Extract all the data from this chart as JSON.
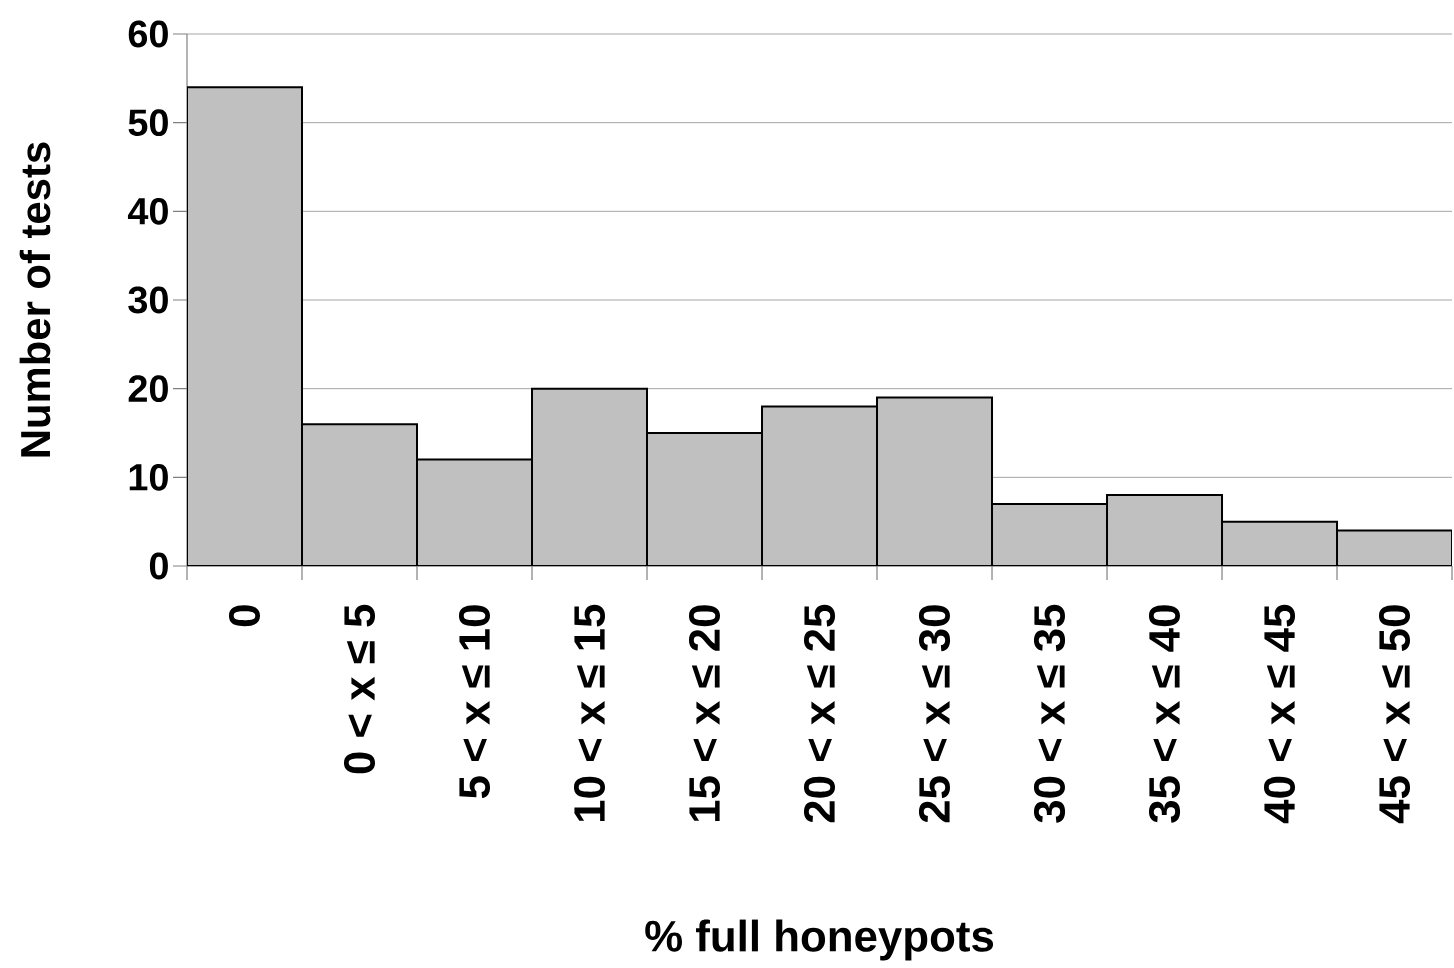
{
  "chart_data": {
    "type": "bar",
    "xlabel": "% full honeypots",
    "ylabel": "Number of tests",
    "categories": [
      "0",
      "0 < x ≤ 5",
      "5 < x ≤ 10",
      "10 < x ≤ 15",
      "15 < x ≤ 20",
      "20 < x ≤ 25",
      "25 < x ≤ 30",
      "30 < x ≤ 35",
      "35 < x ≤ 40",
      "40 < x ≤ 45",
      "45 < x ≤ 50"
    ],
    "values": [
      54,
      16,
      12,
      20,
      15,
      18,
      19,
      7,
      8,
      5,
      4
    ],
    "color": "#c0c0c0",
    "ylim": [
      0,
      60
    ],
    "yticks": [
      0,
      10,
      20,
      30,
      40,
      50,
      60
    ],
    "grid": "y"
  }
}
